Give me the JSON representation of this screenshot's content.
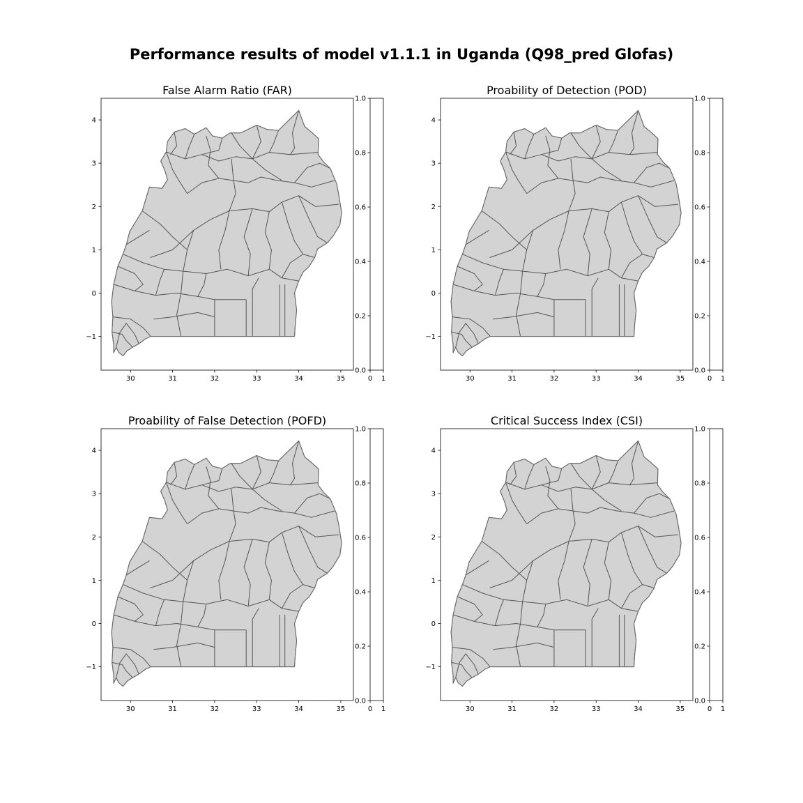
{
  "title": "Performance results of model v1.1.1 in Uganda (Q98_pred Glofas)",
  "colors": {
    "fill": "#d3d3d3",
    "edge": "#808080"
  },
  "axes": {
    "x_ticks": [
      "30",
      "31",
      "32",
      "33",
      "34",
      "35"
    ],
    "y_ticks": [
      "4",
      "3",
      "2",
      "1",
      "0",
      "−1"
    ],
    "x_values": [
      30,
      31,
      32,
      33,
      34,
      35
    ],
    "y_values": [
      4,
      3,
      2,
      1,
      0,
      -1
    ],
    "xlim": [
      29.3,
      35.3
    ],
    "ylim": [
      -1.78,
      4.5
    ]
  },
  "colorbar": {
    "ticks": [
      "0.0",
      "0.2",
      "0.4",
      "0.6",
      "0.8",
      "1.0"
    ],
    "tick_values": [
      0.0,
      0.2,
      0.4,
      0.6,
      0.8,
      1.0
    ],
    "x_ticks": [
      "0",
      "1"
    ]
  },
  "panels": [
    {
      "title": "False Alarm Ratio (FAR)"
    },
    {
      "title": "Proability of Detection (POD)"
    },
    {
      "title": "Proability of False Detection (POFD)"
    },
    {
      "title": "Critical Success Index (CSI)"
    }
  ]
}
